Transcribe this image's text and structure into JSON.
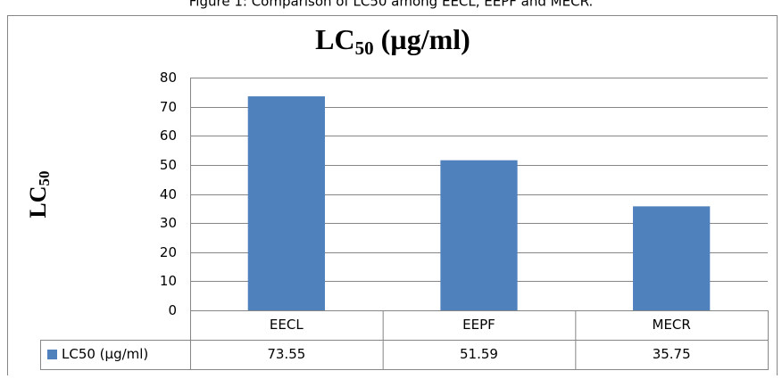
{
  "caption": "Figure 1: Comparison of LC50 among EECL, EEPF and MECR.",
  "chart_data": {
    "type": "bar",
    "title_parts": {
      "main": "LC",
      "sub": "50",
      "rest": " (µg/ml)"
    },
    "y_label_parts": {
      "main": "LC",
      "sub": "50"
    },
    "categories": [
      "EECL",
      "EEPF",
      "MECR"
    ],
    "series": [
      {
        "name": "LC50 (µg/ml)",
        "color": "#4f81bd",
        "values": [
          73.55,
          51.59,
          35.75
        ]
      }
    ],
    "ylim": [
      0,
      80
    ],
    "yticks": [
      0,
      10,
      20,
      30,
      40,
      50,
      60,
      70,
      80
    ],
    "grid": true,
    "data_table": true
  }
}
